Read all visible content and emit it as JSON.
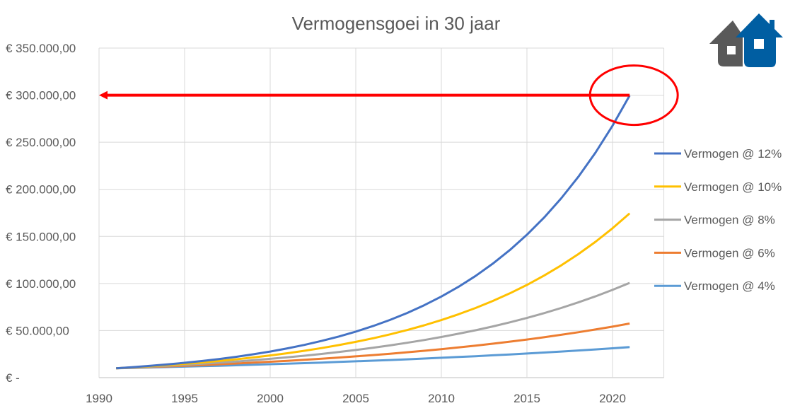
{
  "chart_data": {
    "type": "line",
    "title": "Vermogensgoei in 30 jaar",
    "xlabel": "",
    "ylabel": "",
    "xlim": [
      1990,
      2023
    ],
    "ylim": [
      0,
      350000
    ],
    "grid": true,
    "legend_position": "right",
    "x_ticks": [
      "1990",
      "1995",
      "2000",
      "2005",
      "2010",
      "2015",
      "2020"
    ],
    "y_ticks": [
      "€ -",
      "€ 50.000,00",
      "€ 100.000,00",
      "€ 150.000,00",
      "€ 200.000,00",
      "€ 250.000,00",
      "€ 300.000,00",
      "€ 350.000,00"
    ],
    "x": [
      1991,
      1992,
      1993,
      1994,
      1995,
      1996,
      1997,
      1998,
      1999,
      2000,
      2001,
      2002,
      2003,
      2004,
      2005,
      2006,
      2007,
      2008,
      2009,
      2010,
      2011,
      2012,
      2013,
      2014,
      2015,
      2016,
      2017,
      2018,
      2019,
      2020,
      2021
    ],
    "series": [
      {
        "name": "Vermogen @ 12%",
        "color": "#4472c4",
        "values": [
          10000,
          11200,
          12544,
          14049,
          15735,
          17623,
          19738,
          22107,
          24760,
          27731,
          31058,
          34785,
          38960,
          43635,
          48871,
          54736,
          61304,
          68660,
          76900,
          86128,
          96463,
          108038,
          121003,
          135523,
          151786,
          170001,
          190401,
          213249,
          238839,
          267499,
          299599
        ]
      },
      {
        "name": "Vermogen @ 10%",
        "color": "#ffc000",
        "values": [
          10000,
          11000,
          12100,
          13310,
          14641,
          16105,
          17716,
          19487,
          21436,
          23579,
          25937,
          28531,
          31384,
          34523,
          37975,
          41772,
          45950,
          50545,
          55599,
          61159,
          67275,
          74002,
          81403,
          89543,
          98497,
          108347,
          119182,
          131100,
          144210,
          158631,
          174494
        ]
      },
      {
        "name": "Vermogen @ 8%",
        "color": "#a5a5a5",
        "values": [
          10000,
          10800,
          11664,
          12597,
          13605,
          14693,
          15869,
          17138,
          18509,
          19990,
          21589,
          23316,
          25182,
          27196,
          29372,
          31722,
          34259,
          37000,
          39960,
          43157,
          46610,
          50338,
          54365,
          58715,
          63412,
          68485,
          73964,
          79881,
          86271,
          93173,
          100627
        ]
      },
      {
        "name": "Vermogen @ 6%",
        "color": "#ed7d31",
        "values": [
          10000,
          10600,
          11236,
          11910,
          12625,
          13382,
          14185,
          15036,
          15938,
          16895,
          17908,
          18983,
          20122,
          21329,
          22609,
          23966,
          25404,
          26928,
          28543,
          30256,
          32071,
          33996,
          36035,
          38197,
          40489,
          42919,
          45494,
          48223,
          51117,
          54184,
          57435
        ]
      },
      {
        "name": "Vermogen @ 4%",
        "color": "#5b9bd5",
        "values": [
          10000,
          10400,
          10816,
          11249,
          11699,
          12167,
          12653,
          13159,
          13686,
          14233,
          14802,
          15395,
          16010,
          16651,
          17317,
          18009,
          18730,
          19479,
          20258,
          21068,
          21911,
          22788,
          23699,
          24647,
          25633,
          26658,
          27725,
          28834,
          29987,
          31187,
          32434
        ]
      }
    ],
    "annotations": [
      {
        "type": "arrow",
        "color": "#ff0000",
        "from": [
          2021,
          300000
        ],
        "to": [
          1990,
          300000
        ]
      },
      {
        "type": "ellipse",
        "color": "#ff0000",
        "center": [
          2021,
          300000
        ]
      }
    ]
  },
  "logo": {
    "icon": "two-houses-logo",
    "colors": [
      "#595959",
      "#005ea2"
    ]
  }
}
